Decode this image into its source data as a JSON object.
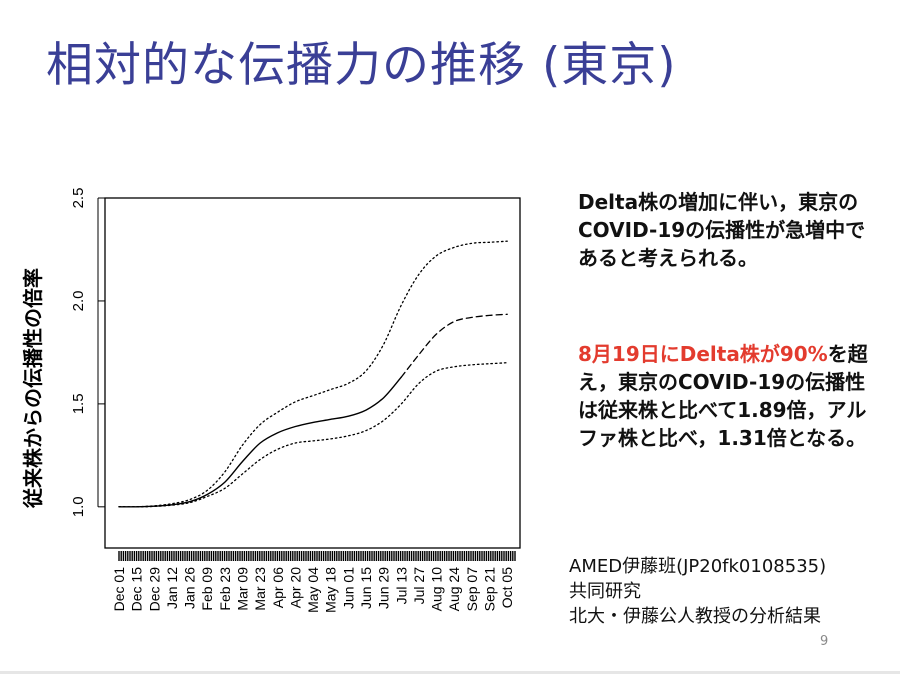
{
  "slide": {
    "title": "相対的な伝播力の推移 (東京)",
    "page_number": "9"
  },
  "notes": {
    "summary": "Delta株の増加に伴い，東京のCOVID-19の伝播性が急増中であると考えられる。",
    "finding_highlight": "8月19日にDelta株が90%",
    "finding_rest": "を超え，東京のCOVID-19の伝播性は従来株と比べて1.89倍，アルファ株と比べ，1.31倍となる。"
  },
  "credit": {
    "line1": "AMED伊藤班(JP20fk0108535)",
    "line2": "共同研究",
    "line3": "北大・伊藤公人教授の分析結果"
  },
  "colors": {
    "title": "#3a3f96",
    "highlight": "#e33b2e",
    "curve": "#000000"
  },
  "chart_data": {
    "type": "line",
    "ylabel": "従来株からの伝播性の倍率",
    "xlabel": "",
    "ylim": [
      0.8,
      2.5
    ],
    "yticks": [
      1.0,
      1.5,
      2.0,
      2.5
    ],
    "x_tick_labels": [
      "Dec 01",
      "Dec 15",
      "Dec 29",
      "Jan 12",
      "Jan 26",
      "Feb 09",
      "Feb 23",
      "Mar 09",
      "Mar 23",
      "Apr 06",
      "Apr 20",
      "May 04",
      "May 18",
      "Jun 01",
      "Jun 15",
      "Jun 29",
      "Jul 13",
      "Jul 27",
      "Aug 10",
      "Aug 24",
      "Sep 07",
      "Sep 21",
      "Oct 05"
    ],
    "x_range": [
      "Dec 01",
      "Oct 12"
    ],
    "rug": "dense tick marks along x-axis bottom",
    "series": [
      {
        "style": "dotted",
        "x": [
          "Dec 01",
          "Dec 15",
          "Dec 29",
          "Jan 12",
          "Jan 26",
          "Feb 09",
          "Feb 23",
          "Mar 09",
          "Mar 23",
          "Apr 06",
          "Apr 20",
          "May 04",
          "May 18",
          "Jun 01",
          "Jun 15",
          "Jun 29",
          "Jul 13",
          "Jul 27",
          "Aug 10",
          "Aug 24",
          "Sep 07",
          "Sep 21",
          "Oct 05"
        ],
        "y": [
          1.0,
          1.0,
          1.005,
          1.015,
          1.035,
          1.08,
          1.17,
          1.3,
          1.4,
          1.46,
          1.51,
          1.54,
          1.57,
          1.6,
          1.66,
          1.79,
          1.98,
          2.13,
          2.22,
          2.26,
          2.28,
          2.285,
          2.29
        ]
      },
      {
        "style": "solid",
        "x": [
          "Dec 01",
          "Dec 15",
          "Dec 29",
          "Jan 12",
          "Jan 26",
          "Feb 09",
          "Feb 23",
          "Mar 09",
          "Mar 23",
          "Apr 06",
          "Apr 20",
          "May 04",
          "May 18",
          "Jun 01",
          "Jun 15",
          "Jun 29",
          "Jul 13"
        ],
        "y": [
          1.0,
          1.0,
          1.003,
          1.01,
          1.025,
          1.06,
          1.12,
          1.22,
          1.31,
          1.36,
          1.39,
          1.41,
          1.425,
          1.44,
          1.47,
          1.53,
          1.63
        ]
      },
      {
        "style": "dashed",
        "x": [
          "Jul 13",
          "Jul 27",
          "Aug 10",
          "Aug 24",
          "Sep 07",
          "Sep 21",
          "Oct 05"
        ],
        "y": [
          1.63,
          1.74,
          1.84,
          1.9,
          1.92,
          1.93,
          1.935
        ]
      },
      {
        "style": "dotted",
        "x": [
          "Dec 01",
          "Dec 15",
          "Dec 29",
          "Jan 12",
          "Jan 26",
          "Feb 09",
          "Feb 23",
          "Mar 09",
          "Mar 23",
          "Apr 06",
          "Apr 20",
          "May 04",
          "May 18",
          "Jun 01",
          "Jun 15",
          "Jun 29",
          "Jul 13",
          "Jul 27",
          "Aug 10",
          "Aug 24",
          "Sep 07",
          "Sep 21",
          "Oct 05"
        ],
        "y": [
          1.0,
          1.0,
          1.002,
          1.008,
          1.02,
          1.05,
          1.09,
          1.16,
          1.23,
          1.28,
          1.31,
          1.32,
          1.33,
          1.345,
          1.37,
          1.42,
          1.5,
          1.6,
          1.66,
          1.68,
          1.69,
          1.695,
          1.7
        ]
      }
    ]
  }
}
